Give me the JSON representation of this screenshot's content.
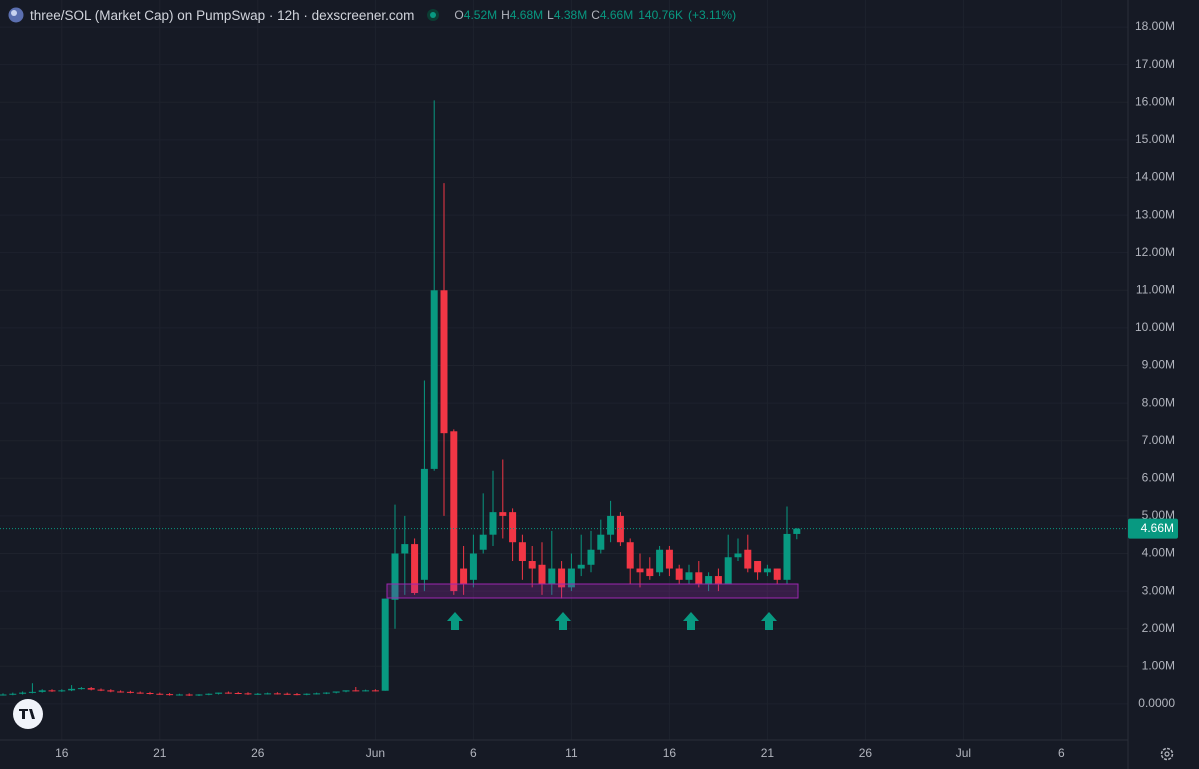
{
  "chart_data": {
    "type": "candlestick",
    "title": "three/SOL (Market Cap) on PumpSwap · 12h · dexscreener.com",
    "legend": {
      "o": "O",
      "open": "4.52M",
      "h": "H",
      "high": "4.68M",
      "l": "L",
      "low": "4.38M",
      "c": "C",
      "close": "4.66M",
      "volume": "140.76K",
      "change": "(+3.11%)"
    },
    "categories": [
      null,
      null,
      null,
      null,
      null,
      null,
      "16",
      null,
      null,
      null,
      null,
      null,
      null,
      null,
      null,
      null,
      "21",
      null,
      null,
      null,
      null,
      null,
      null,
      null,
      null,
      null,
      "26",
      null,
      null,
      null,
      null,
      null,
      null,
      null,
      null,
      null,
      null,
      null,
      "Jun",
      null,
      null,
      null,
      null,
      null,
      null,
      null,
      null,
      null,
      "6",
      null,
      null,
      null,
      null,
      null,
      null,
      null,
      null,
      null,
      "11",
      null,
      null,
      null,
      null,
      null,
      null,
      null,
      null,
      null,
      "16",
      null,
      null,
      null,
      null,
      null,
      null,
      null,
      null,
      null,
      "21",
      null,
      null,
      null,
      null,
      null,
      null,
      null,
      null,
      null,
      "26",
      null,
      null,
      null,
      null,
      null,
      null,
      null,
      null,
      null,
      "Jul",
      null,
      null,
      null,
      null,
      null,
      null,
      null,
      null,
      null,
      "6",
      null,
      null,
      null,
      null,
      null,
      null
    ],
    "open": [
      0.24,
      0.25,
      0.27,
      0.3,
      0.32,
      0.36,
      0.34,
      0.36,
      0.4,
      0.42,
      0.38,
      0.36,
      0.33,
      0.32,
      0.3,
      0.29,
      0.27,
      0.26,
      0.24,
      0.25,
      0.23,
      0.25,
      0.27,
      0.3,
      0.29,
      0.28,
      0.26,
      0.27,
      0.28,
      0.27,
      0.26,
      0.25,
      0.27,
      0.28,
      0.3,
      0.33,
      0.36,
      0.35,
      0.36,
      0.35,
      2.77,
      4.0,
      4.25,
      3.3,
      6.25,
      11.0,
      7.25,
      3.6,
      3.3,
      4.1,
      4.5,
      5.1,
      5.1,
      4.3,
      3.8,
      3.7,
      3.2,
      3.6,
      3.1,
      3.6,
      3.7,
      4.1,
      4.5,
      5.0,
      4.3,
      3.6,
      3.6,
      3.5,
      4.1,
      3.6,
      3.3,
      3.5,
      3.2,
      3.4,
      3.2,
      3.9,
      4.1,
      3.8,
      3.5,
      3.6,
      3.3,
      4.52,
      null,
      null,
      null,
      null,
      null,
      null,
      null,
      null,
      null,
      null,
      null,
      null,
      null,
      null,
      null,
      null,
      null,
      null,
      null,
      null,
      null,
      null,
      null,
      null,
      null,
      null,
      null,
      null,
      null,
      null,
      null,
      null,
      null
    ],
    "high": [
      0.28,
      0.3,
      0.33,
      0.55,
      0.39,
      0.39,
      0.39,
      0.5,
      0.45,
      0.45,
      0.41,
      0.39,
      0.36,
      0.35,
      0.33,
      0.32,
      0.3,
      0.29,
      0.27,
      0.28,
      0.26,
      0.28,
      0.3,
      0.33,
      0.32,
      0.31,
      0.29,
      0.3,
      0.31,
      0.3,
      0.29,
      0.28,
      0.3,
      0.31,
      0.33,
      0.36,
      0.45,
      0.38,
      0.39,
      2.8,
      5.3,
      5.0,
      4.4,
      8.6,
      16.05,
      13.85,
      7.3,
      4.2,
      4.5,
      5.6,
      6.2,
      6.5,
      5.2,
      4.5,
      4.2,
      4.3,
      4.6,
      3.8,
      4.0,
      4.5,
      4.6,
      4.9,
      5.4,
      5.1,
      4.4,
      4.0,
      3.9,
      4.2,
      4.2,
      3.7,
      3.7,
      3.8,
      3.5,
      3.6,
      4.5,
      4.4,
      4.5,
      3.8,
      3.7,
      3.6,
      5.25,
      4.68,
      null,
      null,
      null,
      null,
      null,
      null,
      null,
      null,
      null,
      null,
      null,
      null,
      null,
      null,
      null,
      null,
      null,
      null,
      null,
      null,
      null,
      null,
      null,
      null,
      null,
      null,
      null,
      null,
      null,
      null,
      null,
      null,
      null
    ],
    "low": [
      0.22,
      0.23,
      0.25,
      0.28,
      0.3,
      0.32,
      0.32,
      0.34,
      0.38,
      0.36,
      0.34,
      0.31,
      0.3,
      0.28,
      0.27,
      0.25,
      0.24,
      0.22,
      0.22,
      0.21,
      0.21,
      0.23,
      0.25,
      0.27,
      0.26,
      0.24,
      0.24,
      0.25,
      0.25,
      0.24,
      0.23,
      0.23,
      0.25,
      0.26,
      0.28,
      0.31,
      0.33,
      0.33,
      0.33,
      0.35,
      2.0,
      2.9,
      2.9,
      3.0,
      6.2,
      5.0,
      2.9,
      2.9,
      3.1,
      4.0,
      4.2,
      4.4,
      3.8,
      3.3,
      3.1,
      2.9,
      2.9,
      2.8,
      3.0,
      3.4,
      3.5,
      4.0,
      4.3,
      4.2,
      3.2,
      3.1,
      3.3,
      3.4,
      3.4,
      3.2,
      3.2,
      3.1,
      3.0,
      3.0,
      3.2,
      3.8,
      3.5,
      3.3,
      3.4,
      3.2,
      3.2,
      4.38,
      null,
      null,
      null,
      null,
      null,
      null,
      null,
      null,
      null,
      null,
      null,
      null,
      null,
      null,
      null,
      null,
      null,
      null,
      null,
      null,
      null,
      null,
      null,
      null,
      null,
      null,
      null,
      null,
      null,
      null,
      null,
      null,
      null
    ],
    "close": [
      0.25,
      0.27,
      0.3,
      0.32,
      0.36,
      0.34,
      0.36,
      0.4,
      0.42,
      0.38,
      0.36,
      0.33,
      0.32,
      0.3,
      0.29,
      0.27,
      0.26,
      0.24,
      0.25,
      0.23,
      0.25,
      0.27,
      0.3,
      0.29,
      0.28,
      0.26,
      0.27,
      0.28,
      0.27,
      0.26,
      0.25,
      0.27,
      0.28,
      0.3,
      0.33,
      0.36,
      0.35,
      0.36,
      0.35,
      2.8,
      4.0,
      4.25,
      2.95,
      6.25,
      11.0,
      7.2,
      3.0,
      3.2,
      4.0,
      4.5,
      5.1,
      5.0,
      4.3,
      3.8,
      3.6,
      3.2,
      3.6,
      3.1,
      3.6,
      3.7,
      4.1,
      4.5,
      5.0,
      4.3,
      3.6,
      3.5,
      3.4,
      4.1,
      3.6,
      3.3,
      3.5,
      3.2,
      3.4,
      3.2,
      3.9,
      4.0,
      3.6,
      3.5,
      3.6,
      3.3,
      4.52,
      4.66,
      null,
      null,
      null,
      null,
      null,
      null,
      null,
      null,
      null,
      null,
      null,
      null,
      null,
      null,
      null,
      null,
      null,
      null,
      null,
      null,
      null,
      null,
      null,
      null,
      null,
      null,
      null,
      null,
      null,
      null,
      null,
      null,
      null
    ],
    "up_color": "#089981",
    "down_color": "#f23645",
    "ylim": [
      -0.96,
      18.72
    ],
    "yticks": [
      {
        "value": 0,
        "label": "0.0000"
      },
      {
        "value": 1,
        "label": "1.00M"
      },
      {
        "value": 2,
        "label": "2.00M"
      },
      {
        "value": 3,
        "label": "3.00M"
      },
      {
        "value": 4,
        "label": "4.00M"
      },
      {
        "value": 5,
        "label": "5.00M"
      },
      {
        "value": 6,
        "label": "6.00M"
      },
      {
        "value": 7,
        "label": "7.00M"
      },
      {
        "value": 8,
        "label": "8.00M"
      },
      {
        "value": 9,
        "label": "9.00M"
      },
      {
        "value": 10,
        "label": "10.00M"
      },
      {
        "value": 11,
        "label": "11.00M"
      },
      {
        "value": 12,
        "label": "12.00M"
      },
      {
        "value": 13,
        "label": "13.00M"
      },
      {
        "value": 14,
        "label": "14.00M"
      },
      {
        "value": 15,
        "label": "15.00M"
      },
      {
        "value": 16,
        "label": "16.00M"
      },
      {
        "value": 17,
        "label": "17.00M"
      },
      {
        "value": 18,
        "label": "18.00M"
      }
    ],
    "last_price": {
      "value": 4.66,
      "label": "4.66M"
    },
    "grid": true
  }
}
